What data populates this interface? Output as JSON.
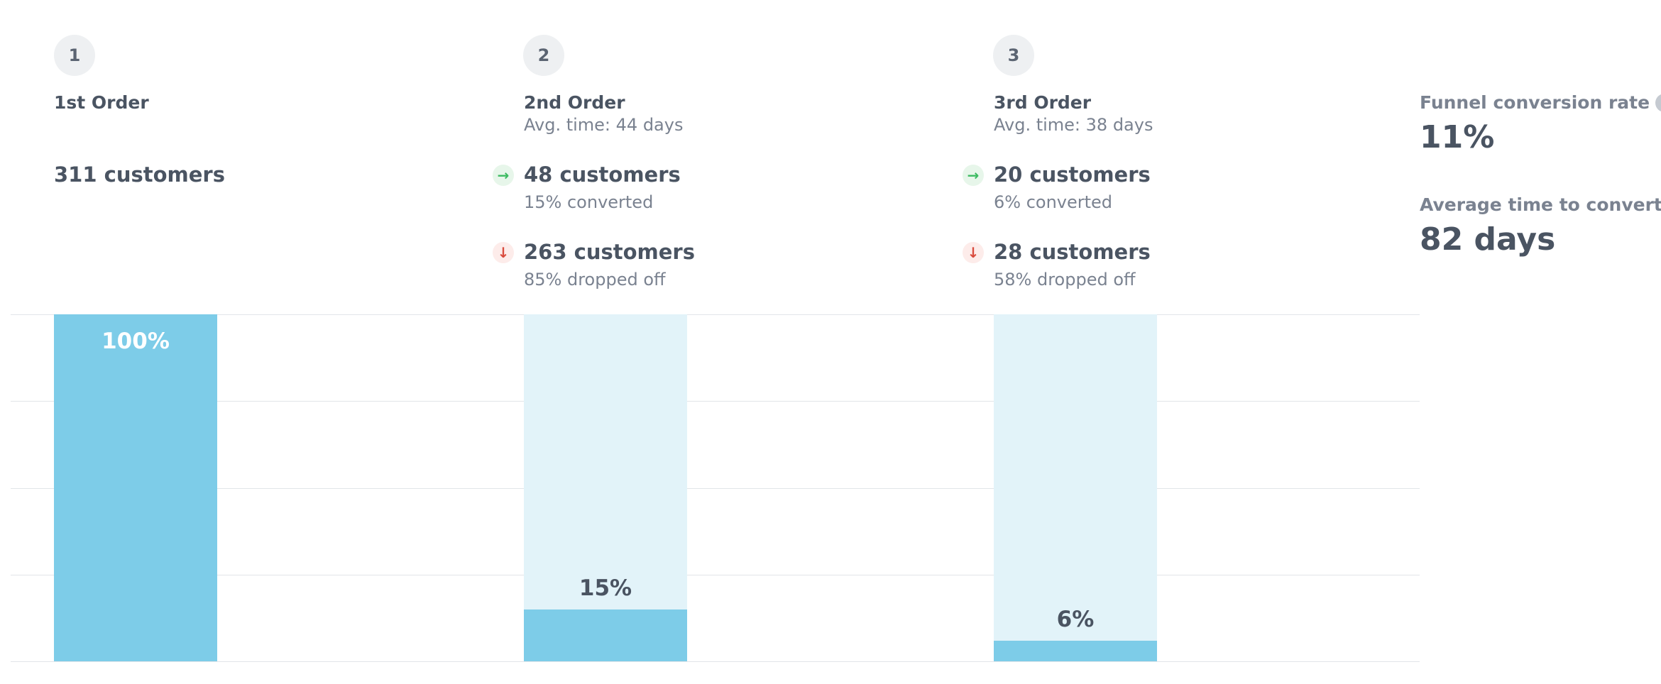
{
  "steps": [
    {
      "number": "1",
      "title": "1st Order",
      "avg_time": "",
      "customers": "311 customers"
    },
    {
      "number": "2",
      "title": "2nd Order",
      "avg_time": "Avg. time: 44 days",
      "converted_count": "48 customers",
      "converted_pct": "15% converted",
      "dropped_count": "263 customers",
      "dropped_pct": "85% dropped off"
    },
    {
      "number": "3",
      "title": "3rd Order",
      "avg_time": "Avg. time: 38 days",
      "converted_count": "20 customers",
      "converted_pct": "6% converted",
      "dropped_count": "28 customers",
      "dropped_pct": "58% dropped off"
    }
  ],
  "summary": {
    "conversion_label": "Funnel conversion rate",
    "conversion_value": "11%",
    "time_label": "Average time to convert",
    "time_value": "82 days"
  },
  "icons": {
    "converted": "arrow-right-icon",
    "dropped": "arrow-down-icon",
    "info": "info-icon"
  },
  "colors": {
    "bar_fill": "#7dcce8",
    "bar_background": "#e2f3f9",
    "converted": "#3dbb62",
    "dropped": "#d94b3d"
  },
  "chart_data": {
    "type": "bar",
    "categories": [
      "1st Order",
      "2nd Order",
      "3rd Order"
    ],
    "values": [
      100,
      15,
      6
    ],
    "labels": [
      "100%",
      "15%",
      "6%"
    ],
    "ylim": [
      0,
      100
    ],
    "grid": true
  }
}
